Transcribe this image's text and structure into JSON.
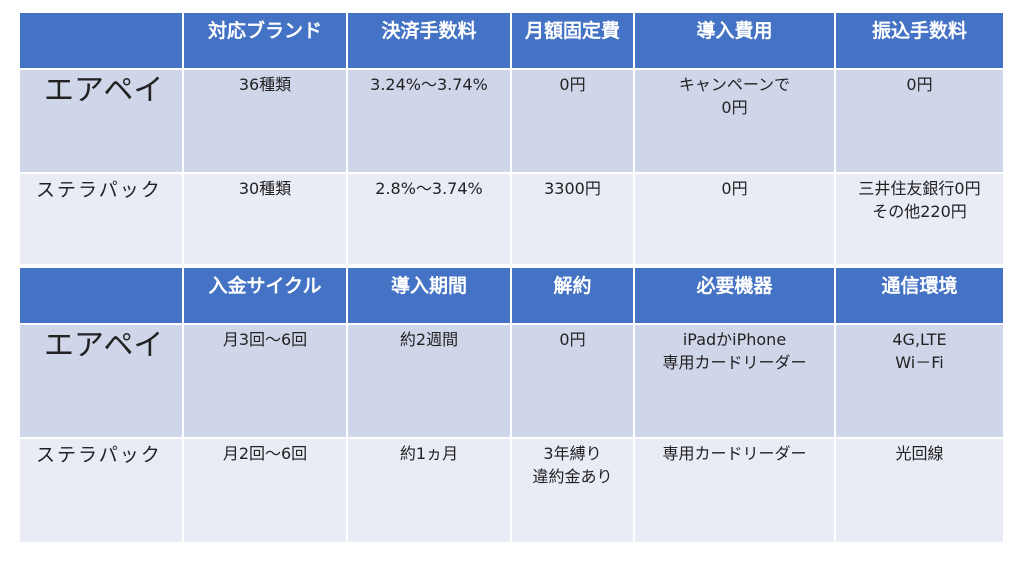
{
  "colors": {
    "header": "#4472c4",
    "row_dark": "#d0d6ea",
    "row_light": "#e9ebf5"
  },
  "table1": {
    "headers": [
      "",
      "対応ブランド",
      "決済手数料",
      "月額固定費",
      "導入費用",
      "振込手数料"
    ],
    "rows": [
      {
        "name": "エアペイ",
        "cells": [
          "36種類",
          "3.24%～3.74%",
          "0円",
          "キャンペーンで\n0円",
          "0円"
        ]
      },
      {
        "name": "ステラパック",
        "cells": [
          "30種類",
          "2.8%～3.74%",
          "3300円",
          "0円",
          "三井住友銀行0円\nその他220円"
        ]
      }
    ]
  },
  "table2": {
    "headers": [
      "",
      "入金サイクル",
      "導入期間",
      "解約",
      "必要機器",
      "通信環境"
    ],
    "rows": [
      {
        "name": "エアペイ",
        "cells": [
          "月3回～6回",
          "約2週間",
          "0円",
          "iPadかiPhone\n専用カードリーダー",
          "4G,LTE\nWi－Fi"
        ]
      },
      {
        "name": "ステラパック",
        "cells": [
          "月2回～6回",
          "約1ヵ月",
          "3年縛り\n違約金あり",
          "専用カードリーダー",
          "光回線"
        ]
      }
    ]
  }
}
